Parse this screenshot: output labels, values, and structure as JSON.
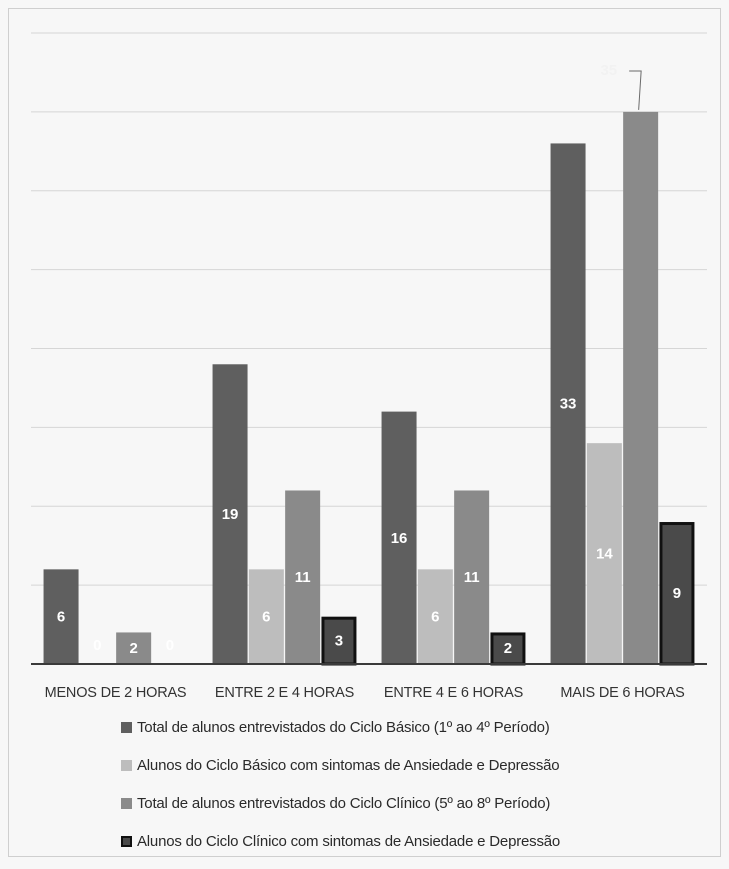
{
  "chart_data": {
    "type": "bar",
    "categories": [
      "MENOS DE 2 HORAS",
      "ENTRE 2 E 4 HORAS",
      "ENTRE 4 E 6 HORAS",
      "MAIS DE 6 HORAS"
    ],
    "series": [
      {
        "name": "Total de alunos entrevistados do Ciclo Básico (1º ao 4º Período)",
        "values": [
          6,
          19,
          16,
          33
        ],
        "color": "#5f5f5f"
      },
      {
        "name": "Alunos do Ciclo Básico com sintomas de Ansiedade e Depressão",
        "values": [
          0,
          6,
          6,
          14
        ],
        "color": "#bdbdbd"
      },
      {
        "name": "Total de alunos entrevistados do Ciclo Clínico (5º ao 8º Período)",
        "values": [
          2,
          11,
          11,
          35
        ],
        "color": "#8a8a8a"
      },
      {
        "name": "Alunos do Ciclo Clínico com sintomas de Ansiedade e Depressão",
        "values": [
          0,
          3,
          2,
          9
        ],
        "color": "#4a4a4a",
        "outline": "#111111"
      }
    ],
    "data_labels": true,
    "ylim": [
      0,
      40
    ],
    "grid": true,
    "legend": "bottom",
    "title": "",
    "xlabel": "",
    "ylabel": ""
  }
}
